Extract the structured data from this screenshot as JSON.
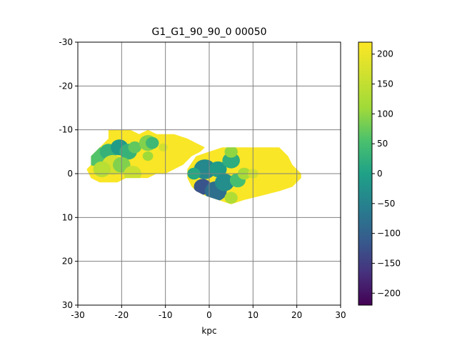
{
  "chart_data": {
    "type": "heatmap",
    "title": "G1_G1_90_90_0   00050",
    "xlabel": "kpc",
    "ylabel": "",
    "xlim": [
      -30,
      30
    ],
    "ylim": [
      -30,
      30
    ],
    "y_axis_inverted": true,
    "x_ticks": [
      "-30",
      "-20",
      "-10",
      "0",
      "10",
      "20",
      "30"
    ],
    "y_ticks": [
      "-30",
      "-20",
      "-10",
      "0",
      "10",
      "20",
      "30"
    ],
    "grid": true,
    "grid_color": "#808080",
    "colormap": "viridis",
    "colorbar": {
      "range": [
        -220,
        220
      ],
      "ticks": [
        "200",
        "150",
        "100",
        "50",
        "0",
        "−50",
        "−100",
        "−150",
        "−200"
      ],
      "tick_values": [
        200,
        150,
        100,
        50,
        0,
        -50,
        -100,
        -150,
        -200
      ]
    },
    "regions": [
      {
        "name": "left-galaxy",
        "outline_kpc": [
          [
            -27,
            -4
          ],
          [
            -25,
            -6
          ],
          [
            -23,
            -8
          ],
          [
            -23,
            -10
          ],
          [
            -20,
            -10
          ],
          [
            -18,
            -10
          ],
          [
            -16,
            -9
          ],
          [
            -14,
            -10
          ],
          [
            -12,
            -9
          ],
          [
            -8,
            -9
          ],
          [
            -5,
            -8
          ],
          [
            -3,
            -7
          ],
          [
            -1,
            -6
          ],
          [
            -2,
            -5
          ],
          [
            -4,
            -4
          ],
          [
            -6,
            -2
          ],
          [
            -8,
            -1
          ],
          [
            -10,
            0
          ],
          [
            -12,
            0
          ],
          [
            -14,
            1
          ],
          [
            -17,
            1
          ],
          [
            -19,
            1
          ],
          [
            -21,
            2
          ],
          [
            -23,
            2
          ],
          [
            -25,
            2
          ],
          [
            -27,
            1
          ],
          [
            -28,
            -1
          ],
          [
            -27,
            -2
          ]
        ],
        "base_value": 215,
        "blobs_kpc_value": [
          [
            -26,
            -4,
            2.5,
            60
          ],
          [
            -23,
            -5,
            2,
            30
          ],
          [
            -20.5,
            -6,
            2,
            -10
          ],
          [
            -18.5,
            -5,
            2,
            30
          ],
          [
            -17,
            -6,
            1.5,
            70
          ],
          [
            -14,
            -7,
            2,
            90
          ],
          [
            -13,
            -7,
            1.5,
            40
          ],
          [
            -22,
            -2,
            2.5,
            170
          ],
          [
            -24.5,
            -1,
            2,
            140
          ],
          [
            -20,
            -2,
            2,
            90
          ],
          [
            -17.5,
            0,
            2,
            160
          ],
          [
            -14,
            -4,
            1.2,
            110
          ],
          [
            -10.5,
            -6,
            1,
            170
          ]
        ]
      },
      {
        "name": "right-galaxy",
        "outline_kpc": [
          [
            -5,
            -1
          ],
          [
            -3,
            -4
          ],
          [
            0,
            -5
          ],
          [
            3,
            -6
          ],
          [
            5,
            -6
          ],
          [
            8,
            -6
          ],
          [
            12,
            -6
          ],
          [
            16,
            -6
          ],
          [
            18,
            -4
          ],
          [
            19,
            -2
          ],
          [
            21,
            0
          ],
          [
            21,
            1
          ],
          [
            19,
            3
          ],
          [
            16,
            4
          ],
          [
            12,
            5
          ],
          [
            8,
            6
          ],
          [
            5,
            7
          ],
          [
            2,
            6
          ],
          [
            -1,
            5
          ],
          [
            -3,
            4
          ],
          [
            -4,
            3
          ],
          [
            -5,
            1
          ]
        ],
        "base_value": 215,
        "blobs_kpc_value": [
          [
            -1.5,
            3,
            2,
            -120
          ],
          [
            1.5,
            4,
            2.5,
            -80
          ],
          [
            -1,
            -1,
            2.5,
            -40
          ],
          [
            2,
            -1,
            2,
            -10
          ],
          [
            5,
            -3,
            2,
            20
          ],
          [
            3.5,
            2,
            2.2,
            -30
          ],
          [
            6.5,
            1.5,
            1.8,
            50
          ],
          [
            5,
            -5,
            1.5,
            100
          ],
          [
            8,
            0,
            1.5,
            120
          ],
          [
            5,
            5.5,
            1.5,
            130
          ],
          [
            10,
            0,
            1.2,
            170
          ],
          [
            -3.5,
            0,
            1.5,
            10
          ]
        ]
      }
    ]
  }
}
